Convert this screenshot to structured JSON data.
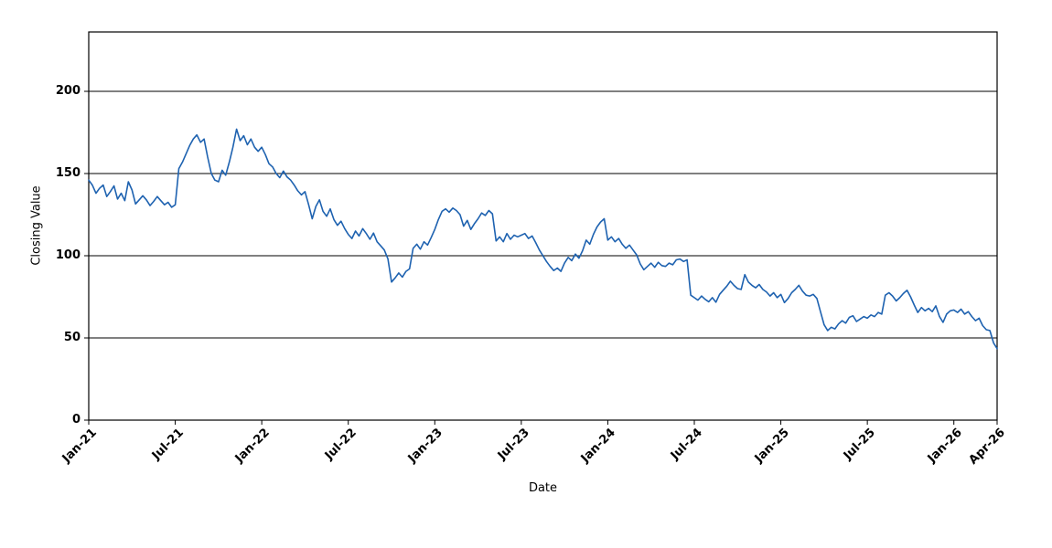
{
  "chart_data": {
    "type": "line",
    "title": "",
    "xlabel": "Date",
    "ylabel": "Closing Value",
    "legend": "none",
    "grid": "horizontal-black-lines",
    "plot_border": "boxed",
    "line_color": "#1e62b0",
    "background_color": "#ffffff",
    "ylim": [
      0,
      236
    ],
    "y_ticks": [
      0,
      50,
      100,
      150,
      200
    ],
    "x_range_months_total": 63,
    "x_tick_labels": [
      "Jan-21",
      "Jul-21",
      "Jan-22",
      "Jul-22",
      "Jan-23",
      "Jul-23",
      "Jan-24",
      "Jul-24",
      "Jan-25",
      "Jul-25",
      "Jan-26",
      "Apr-26"
    ],
    "x_tick_months": [
      0,
      6,
      12,
      18,
      24,
      30,
      36,
      42,
      48,
      54,
      60,
      63
    ],
    "points_per_month": 4,
    "series": [
      {
        "name": "Closing Value",
        "values": [
          146,
          143,
          138,
          141,
          143,
          136,
          139,
          142.5,
          134.5,
          138,
          133.5,
          145,
          140,
          131.5,
          134,
          136.5,
          134,
          130.5,
          133,
          136,
          133.5,
          131,
          132.5,
          129.5,
          131,
          153,
          157,
          162,
          167,
          171,
          173.5,
          169,
          171,
          160,
          150,
          146,
          145,
          152,
          149,
          157,
          166,
          177,
          170,
          173,
          167.5,
          171,
          166,
          163.5,
          166,
          161.5,
          156,
          154,
          150,
          147.5,
          151.5,
          148,
          146,
          143,
          139.5,
          137,
          139,
          131,
          122.5,
          130,
          134,
          127,
          124,
          128.5,
          122,
          118.5,
          121,
          116.5,
          113,
          110.5,
          115,
          112,
          116.5,
          113.5,
          110,
          113.8,
          108.5,
          106,
          103.5,
          98,
          84,
          86.5,
          89.5,
          87,
          90.5,
          92,
          104.5,
          107,
          104,
          108.5,
          106.5,
          111,
          116,
          122,
          127,
          128.5,
          126.5,
          129,
          127.5,
          125,
          118,
          121.5,
          116,
          119.5,
          122.5,
          126,
          124.5,
          127.5,
          125.5,
          109,
          111.5,
          108.5,
          113.5,
          110,
          112.5,
          111.5,
          112.5,
          113.5,
          110.5,
          112,
          108,
          103.5,
          100,
          96.5,
          93.5,
          91,
          92.5,
          90.5,
          95.5,
          99,
          97,
          101,
          98.5,
          103,
          109.5,
          107,
          113,
          117.5,
          120.5,
          122.5,
          109.5,
          111.5,
          108.5,
          110.5,
          107,
          104.5,
          106.5,
          103.5,
          100.5,
          95,
          91.5,
          93.5,
          95.5,
          93,
          96,
          94,
          93.5,
          95.5,
          94.5,
          97.5,
          98,
          96.5,
          97.5,
          76,
          74.5,
          73,
          75.5,
          73.5,
          72,
          74.5,
          71.7,
          76.5,
          79,
          81.5,
          84.5,
          82,
          80,
          79.5,
          88.5,
          84,
          82,
          80.5,
          82.5,
          79.5,
          78,
          75.5,
          77.5,
          74.5,
          76.5,
          71.5,
          74,
          77.5,
          79.5,
          82,
          78.5,
          76,
          75.5,
          76.5,
          74,
          66,
          58,
          54.5,
          56.5,
          55.5,
          58.5,
          60.5,
          59,
          62.5,
          63.5,
          60,
          61.5,
          63,
          62,
          64,
          63,
          65.5,
          64.5,
          76,
          77.5,
          75.5,
          72.5,
          74.5,
          77,
          79,
          75,
          70,
          65.5,
          68.5,
          66.5,
          68,
          66,
          69.5,
          63,
          59.5,
          64.5,
          66.5,
          67,
          65.5,
          67.5,
          64.5,
          66,
          63,
          60.5,
          62,
          57.5,
          55,
          54.5,
          47,
          43.5
        ]
      }
    ]
  }
}
